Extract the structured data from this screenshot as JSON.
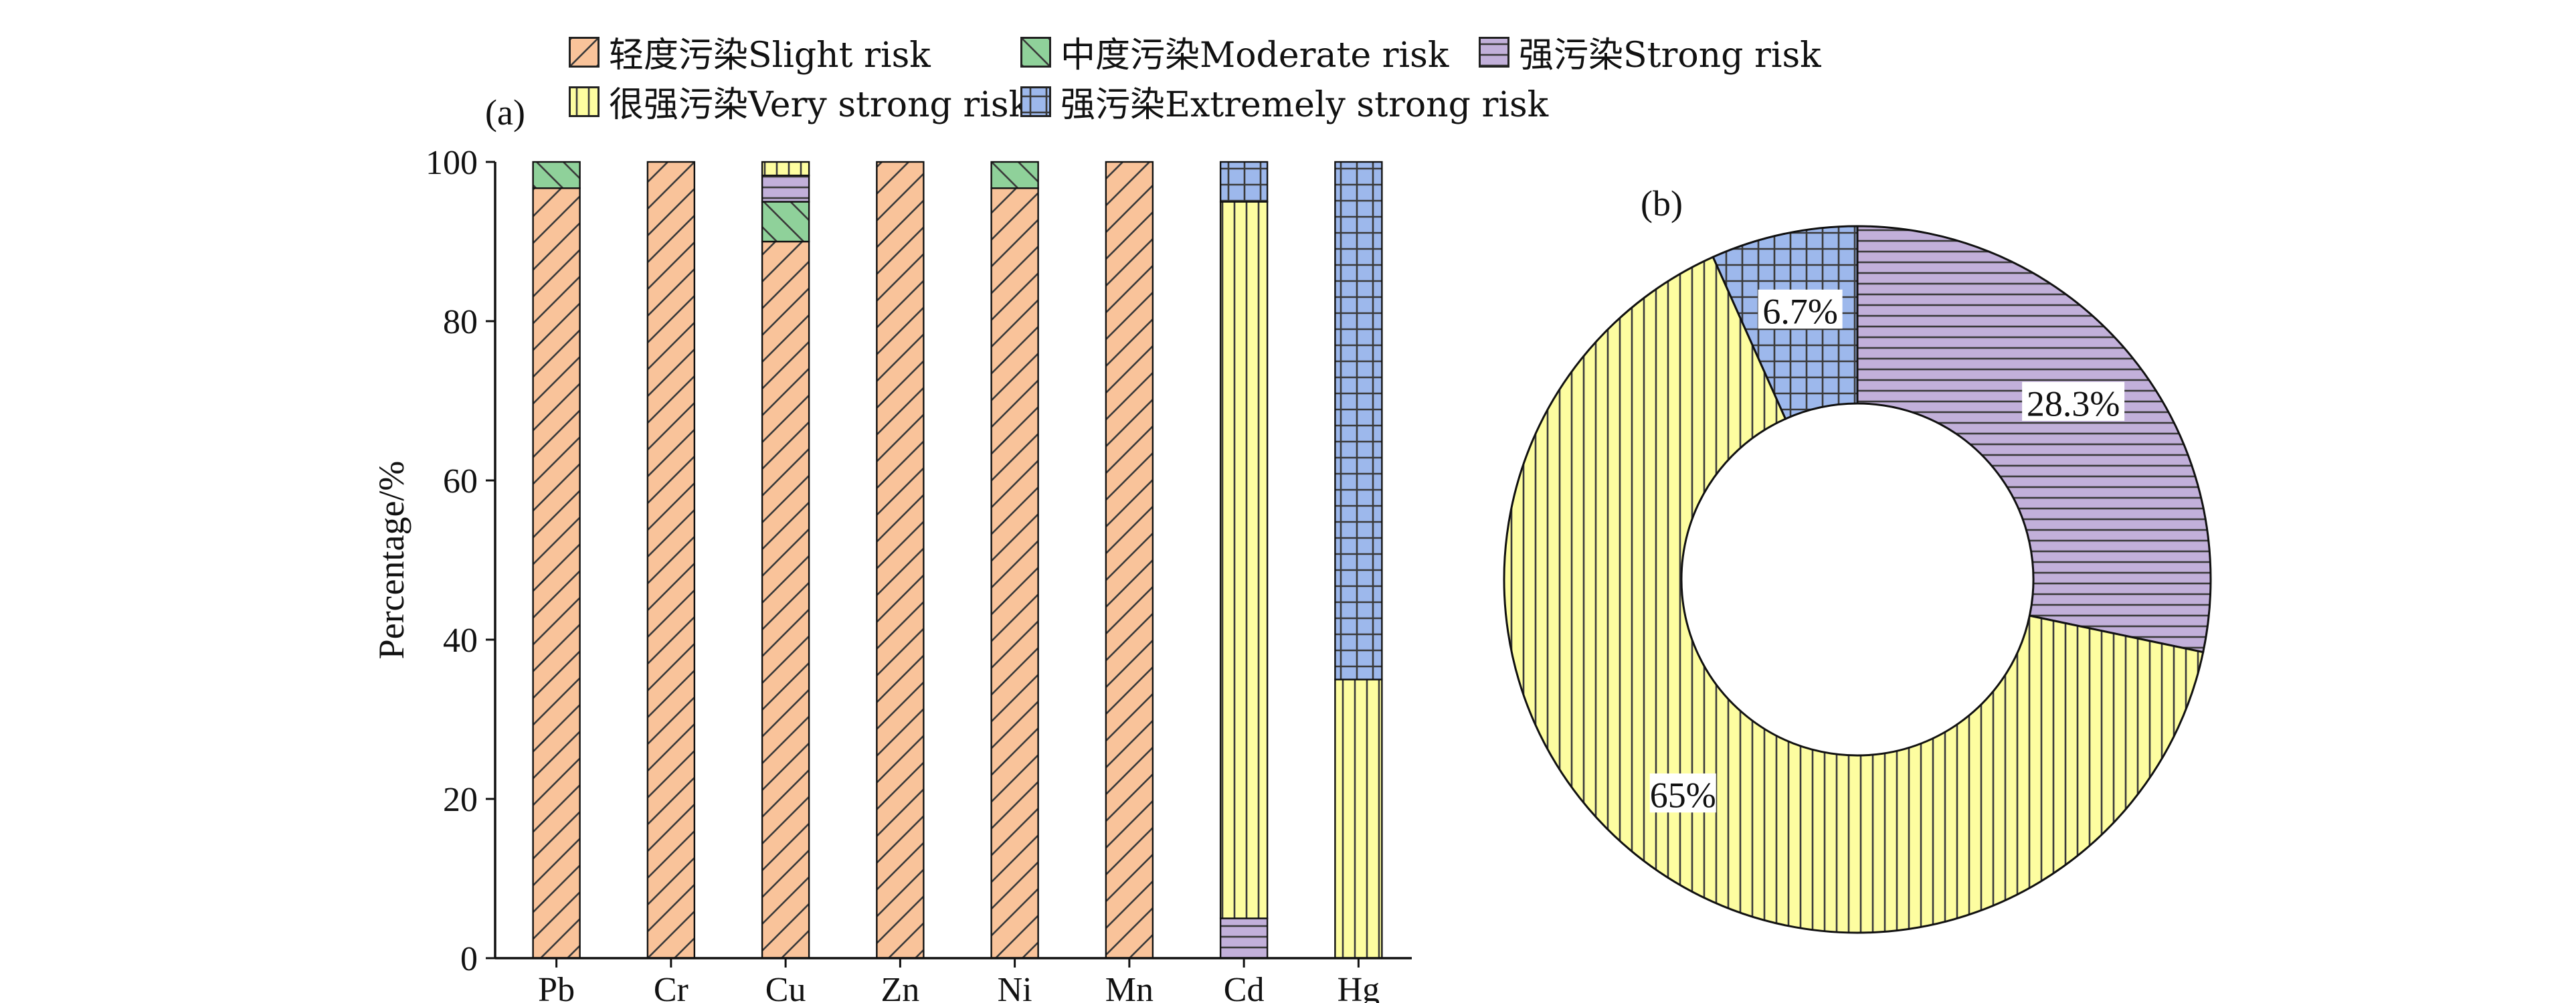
{
  "colors": {
    "slight": "#F9C39A",
    "moderate": "#8FD19A",
    "strong": "#C2B0DA",
    "very_strong": "#FDFDA0",
    "extremely_strong": "#9DB8EC",
    "axis": "#111111",
    "hatch": "#3a3a3a"
  },
  "legend": [
    {
      "key": "slight",
      "label": "轻度污染Slight risk",
      "pattern": "diag"
    },
    {
      "key": "moderate",
      "label": "中度污染Moderate risk",
      "pattern": "antidiag"
    },
    {
      "key": "strong",
      "label": "强污染Strong risk",
      "pattern": "horiz"
    },
    {
      "key": "very_strong",
      "label": "很强污染Very strong risk",
      "pattern": "vert"
    },
    {
      "key": "extremely_strong",
      "label": "强污染Extremely strong risk",
      "pattern": "grid"
    }
  ],
  "chart_data": [
    {
      "type": "bar",
      "stacked": true,
      "panel_label": "(a)",
      "ylabel": "Percentage/%",
      "xlabel": "",
      "ylim": [
        0,
        100
      ],
      "yticks": [
        0,
        20,
        40,
        60,
        80,
        100
      ],
      "categories": [
        "Pb",
        "Cr",
        "Cu",
        "Zn",
        "Ni",
        "Mn",
        "Cd",
        "Hg"
      ],
      "series": [
        {
          "name": "轻度污染Slight risk",
          "key": "slight",
          "values": [
            96.7,
            100,
            90,
            100,
            96.7,
            100,
            0,
            0
          ]
        },
        {
          "name": "中度污染Moderate risk",
          "key": "moderate",
          "values": [
            3.3,
            0,
            5,
            0,
            3.3,
            0,
            0,
            0
          ]
        },
        {
          "name": "强污染Strong risk",
          "key": "strong",
          "values": [
            0,
            0,
            3.3,
            0,
            0,
            0,
            5,
            0
          ]
        },
        {
          "name": "很强污染Very strong risk",
          "key": "very_strong",
          "values": [
            0,
            0,
            1.7,
            0,
            0,
            0,
            90,
            35
          ]
        },
        {
          "name": "强污染Extremely strong risk",
          "key": "extremely_strong",
          "values": [
            0,
            0,
            0,
            0,
            0,
            0,
            5,
            65
          ]
        }
      ]
    },
    {
      "type": "pie",
      "donut": true,
      "panel_label": "(b)",
      "slices": [
        {
          "key": "strong",
          "name": "强污染Strong risk",
          "value": 28.3,
          "label": "28.3%"
        },
        {
          "key": "very_strong",
          "name": "很强污染Very strong risk",
          "value": 65,
          "label": "65%"
        },
        {
          "key": "extremely_strong",
          "name": "强污染Extremely strong risk",
          "value": 6.7,
          "label": "6.7%"
        }
      ]
    }
  ]
}
